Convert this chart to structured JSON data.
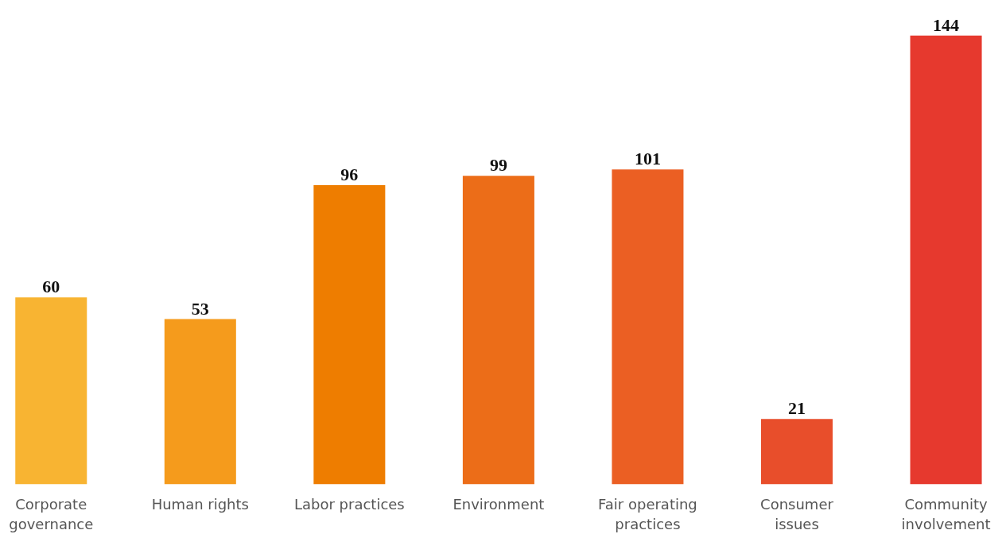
{
  "chart_data": {
    "type": "bar",
    "categories": [
      "Corporate\ngovernance",
      "Human rights",
      "Labor practices",
      "Environment",
      "Fair operating\npractices",
      "Consumer\nissues",
      "Community\ninvolvement"
    ],
    "values": [
      60,
      53,
      96,
      99,
      101,
      21,
      144
    ],
    "colors": [
      "#f8b432",
      "#f59b1c",
      "#ee7d00",
      "#ec6d18",
      "#eb5f23",
      "#e84e2b",
      "#e6392e"
    ],
    "data_labels": true,
    "grid": false
  }
}
